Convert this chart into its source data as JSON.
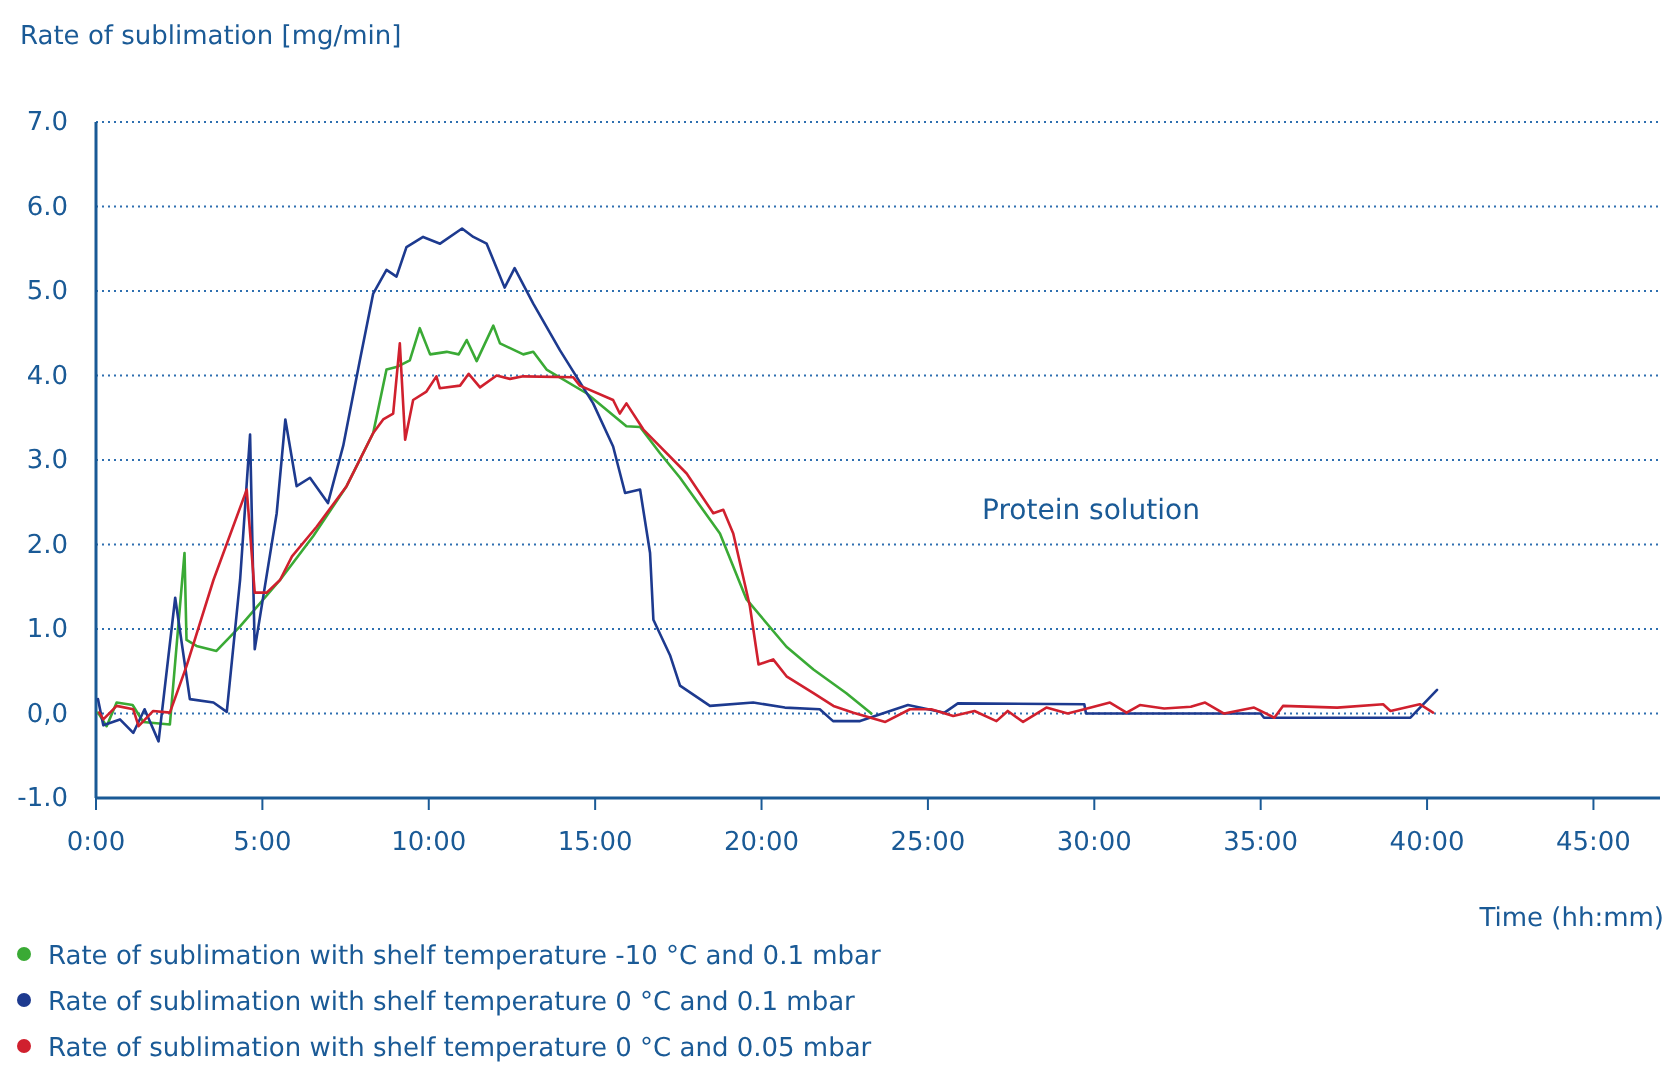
{
  "chart_data": {
    "type": "line",
    "ylabel": "Rate of sublimation [mg/min]",
    "xlabel": "Time (hh:mm)",
    "annotations": [
      "Protein solution"
    ],
    "xlim": [
      0,
      47
    ],
    "ylim": [
      -1,
      7
    ],
    "xticks": [
      {
        "value": 0,
        "label": "0:00"
      },
      {
        "value": 5,
        "label": "5:00"
      },
      {
        "value": 10,
        "label": "10:00"
      },
      {
        "value": 15,
        "label": "15:00"
      },
      {
        "value": 20,
        "label": "20:00"
      },
      {
        "value": 25,
        "label": "25:00"
      },
      {
        "value": 30,
        "label": "30:00"
      },
      {
        "value": 35,
        "label": "35:00"
      },
      {
        "value": 40,
        "label": "40:00"
      },
      {
        "value": 45,
        "label": "45:00"
      }
    ],
    "yticks": [
      {
        "value": -1,
        "label": "-1.0"
      },
      {
        "value": 0,
        "label": "0,0"
      },
      {
        "value": 1,
        "label": "1.0"
      },
      {
        "value": 2,
        "label": "2.0"
      },
      {
        "value": 3,
        "label": "3.0"
      },
      {
        "value": 4,
        "label": "4.0"
      },
      {
        "value": 5,
        "label": "5.0"
      },
      {
        "value": 6,
        "label": "6.0"
      },
      {
        "value": 7,
        "label": "7.0"
      }
    ],
    "grid": "y",
    "legend": "bottom",
    "line_style": "solid",
    "marker": "none",
    "series": [
      {
        "name": "Rate of sublimation with shelf temperature -10 °C and 0.1 mbar",
        "color": "#3aaa35",
        "x": [
          0.06,
          0.32,
          0.62,
          1.1,
          1.42,
          2.22,
          2.66,
          2.72,
          3.02,
          3.62,
          4.33,
          5.53,
          6.53,
          7.53,
          8.33,
          8.73,
          9.03,
          9.43,
          9.73,
          10.04,
          10.54,
          10.9,
          11.14,
          11.44,
          11.94,
          12.14,
          12.84,
          13.14,
          13.54,
          14.74,
          15.94,
          16.35,
          16.95,
          17.55,
          18.75,
          19.55,
          20.75,
          21.56,
          22.55,
          23.3
        ],
        "values": [
          0.01,
          -0.15,
          0.13,
          0.1,
          -0.1,
          -0.13,
          1.9,
          0.87,
          0.8,
          0.74,
          1.03,
          1.58,
          2.1,
          2.69,
          3.32,
          4.07,
          4.1,
          4.18,
          4.56,
          4.25,
          4.28,
          4.25,
          4.42,
          4.17,
          4.59,
          4.38,
          4.25,
          4.28,
          4.07,
          3.79,
          3.4,
          3.39,
          3.08,
          2.79,
          2.13,
          1.35,
          0.79,
          0.52,
          0.24,
          0.0
        ]
      },
      {
        "name": "Rate of sublimation with shelf temperature 0 °C and 0.1 mbar",
        "color": "#1d3a8f",
        "x": [
          0.06,
          0.22,
          0.72,
          1.12,
          1.46,
          1.88,
          2.38,
          2.82,
          3.53,
          3.93,
          4.33,
          4.63,
          4.77,
          5.43,
          5.69,
          6.03,
          6.43,
          6.97,
          7.43,
          7.93,
          8.33,
          8.73,
          9.03,
          9.33,
          9.83,
          10.34,
          11.0,
          11.34,
          11.74,
          12.28,
          12.58,
          13.14,
          13.94,
          14.94,
          15.54,
          15.9,
          16.35,
          16.65,
          16.75,
          17.25,
          17.55,
          18.45,
          19.75,
          20.7,
          21.75,
          22.15,
          22.96,
          24.4,
          25.5,
          25.9,
          29.7,
          29.75,
          35.0,
          35.1,
          39.5,
          40.3
        ],
        "values": [
          0.17,
          -0.14,
          -0.07,
          -0.23,
          0.05,
          -0.33,
          1.37,
          0.17,
          0.13,
          0.02,
          1.58,
          3.3,
          0.76,
          2.37,
          3.48,
          2.69,
          2.79,
          2.49,
          3.17,
          4.18,
          4.97,
          5.25,
          5.17,
          5.52,
          5.64,
          5.56,
          5.74,
          5.64,
          5.56,
          5.04,
          5.27,
          4.85,
          4.3,
          3.67,
          3.16,
          2.61,
          2.65,
          1.9,
          1.11,
          0.69,
          0.33,
          0.09,
          0.13,
          0.07,
          0.05,
          -0.09,
          -0.09,
          0.1,
          0.01,
          0.12,
          0.11,
          0.0,
          0.0,
          -0.05,
          -0.05,
          0.28
        ]
      },
      {
        "name": "Rate of sublimation with shelf temperature 0 °C and 0.05 mbar",
        "color": "#d0202e",
        "x": [
          0.1,
          0.22,
          0.62,
          1.12,
          1.28,
          1.72,
          2.22,
          2.72,
          3.53,
          4.53,
          4.77,
          5.13,
          5.53,
          5.89,
          6.63,
          7.53,
          8.33,
          8.63,
          8.93,
          9.13,
          9.29,
          9.53,
          9.93,
          10.23,
          10.33,
          10.94,
          11.2,
          11.54,
          12.04,
          12.44,
          12.84,
          14.34,
          14.54,
          15.54,
          15.74,
          15.94,
          16.45,
          17.75,
          18.55,
          18.85,
          19.15,
          19.65,
          19.91,
          20.35,
          20.75,
          21.56,
          22.16,
          22.76,
          23.72,
          24.46,
          25.1,
          25.76,
          26.4,
          27.06,
          27.4,
          27.86,
          28.56,
          29.2,
          29.9,
          30.47,
          30.97,
          31.37,
          32.1,
          32.9,
          33.33,
          33.9,
          34.8,
          35.41,
          35.67,
          37.3,
          38.68,
          38.9,
          39.78,
          40.18
        ],
        "values": [
          0.01,
          -0.07,
          0.09,
          0.05,
          -0.15,
          0.03,
          0.01,
          0.56,
          1.58,
          2.65,
          1.43,
          1.43,
          1.58,
          1.86,
          2.21,
          2.69,
          3.32,
          3.48,
          3.55,
          4.38,
          3.24,
          3.71,
          3.81,
          3.99,
          3.85,
          3.88,
          4.02,
          3.86,
          4.0,
          3.96,
          3.99,
          3.98,
          3.88,
          3.71,
          3.55,
          3.67,
          3.36,
          2.84,
          2.37,
          2.41,
          2.13,
          1.27,
          0.58,
          0.64,
          0.44,
          0.24,
          0.09,
          0.01,
          -0.1,
          0.05,
          0.05,
          -0.03,
          0.03,
          -0.09,
          0.03,
          -0.1,
          0.07,
          0.0,
          0.07,
          0.13,
          0.01,
          0.1,
          0.06,
          0.08,
          0.13,
          0.0,
          0.07,
          -0.05,
          0.09,
          0.07,
          0.11,
          0.03,
          0.11,
          0.01
        ]
      }
    ]
  }
}
